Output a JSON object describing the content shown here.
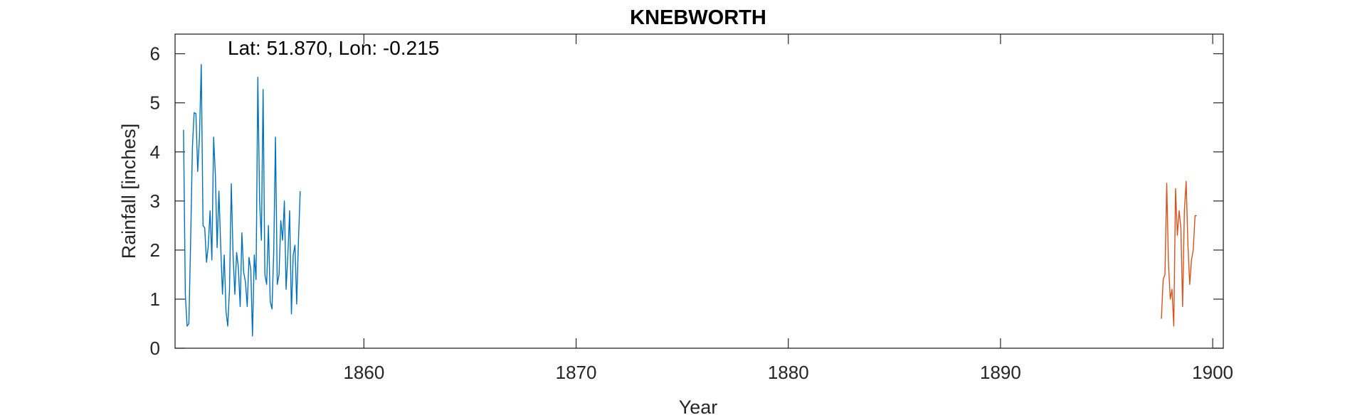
{
  "chart_data": {
    "type": "line",
    "title": "KNEBWORTH",
    "xlabel": "Year",
    "ylabel": "Rainfall [inches]",
    "annotation": "Lat: 51.870, Lon: -0.215",
    "xlim": [
      1851.1,
      1900.5
    ],
    "ylim": [
      0,
      6.4
    ],
    "xticks": [
      1860,
      1870,
      1880,
      1890,
      1900
    ],
    "yticks": [
      0,
      1,
      2,
      3,
      4,
      5,
      6
    ],
    "grid": false,
    "series": [
      {
        "color": "#0072BD",
        "x": [
          1851.5,
          1851.583,
          1851.667,
          1851.75,
          1851.833,
          1851.917,
          1852.0,
          1852.083,
          1852.167,
          1852.25,
          1852.333,
          1852.417,
          1852.5,
          1852.583,
          1852.667,
          1852.75,
          1852.833,
          1852.917,
          1853.0,
          1853.083,
          1853.167,
          1853.25,
          1853.333,
          1853.417,
          1853.5,
          1853.583,
          1853.667,
          1853.75,
          1853.833,
          1853.917,
          1854.0,
          1854.083,
          1854.167,
          1854.25,
          1854.333,
          1854.417,
          1854.5,
          1854.583,
          1854.667,
          1854.75,
          1854.833,
          1854.917,
          1855.0,
          1855.083,
          1855.167,
          1855.25,
          1855.333,
          1855.417,
          1855.5,
          1855.583,
          1855.667,
          1855.75,
          1855.833,
          1855.917,
          1856.0,
          1856.083,
          1856.167,
          1856.25,
          1856.333,
          1856.417,
          1856.5,
          1856.583,
          1856.667,
          1856.75,
          1856.833,
          1856.917,
          1857.0
        ],
        "y": [
          4.45,
          1.1,
          0.45,
          0.5,
          2.2,
          4.1,
          4.8,
          4.78,
          3.6,
          4.3,
          5.78,
          2.5,
          2.45,
          1.75,
          2.1,
          2.8,
          1.8,
          4.3,
          3.5,
          2.05,
          3.2,
          2.1,
          1.1,
          1.9,
          0.75,
          0.45,
          1.2,
          3.35,
          1.9,
          1.1,
          1.95,
          1.65,
          0.85,
          2.35,
          1.55,
          1.35,
          0.85,
          1.85,
          1.6,
          0.25,
          1.9,
          1.4,
          5.52,
          3.0,
          2.2,
          5.27,
          1.5,
          1.3,
          2.5,
          0.95,
          0.8,
          2.0,
          4.3,
          1.3,
          1.5,
          2.6,
          2.2,
          3.0,
          1.2,
          1.9,
          2.8,
          0.7,
          1.9,
          2.1,
          0.9,
          2.25,
          3.2
        ]
      },
      {
        "color": "#D95319",
        "x": [
          1897.583,
          1897.667,
          1897.75,
          1897.833,
          1897.917,
          1898.0,
          1898.083,
          1898.167,
          1898.25,
          1898.333,
          1898.417,
          1898.5,
          1898.583,
          1898.667,
          1898.75,
          1898.833,
          1898.917,
          1899.0,
          1899.083,
          1899.167,
          1899.25
        ],
        "y": [
          0.6,
          1.4,
          1.5,
          3.36,
          1.7,
          1.0,
          1.2,
          0.45,
          3.25,
          2.3,
          2.8,
          2.45,
          0.85,
          2.8,
          3.4,
          2.1,
          1.3,
          1.8,
          2.0,
          2.7,
          2.7
        ]
      }
    ]
  }
}
